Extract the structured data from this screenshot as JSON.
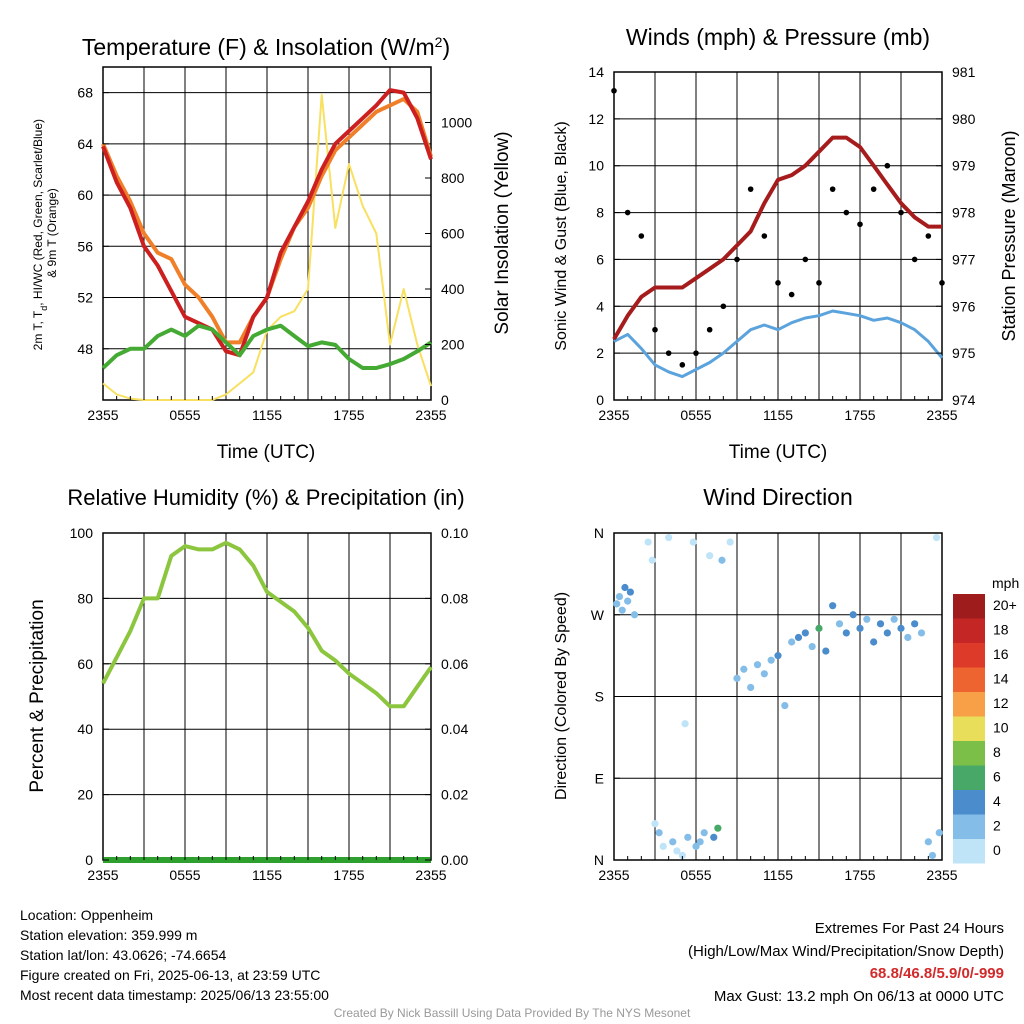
{
  "footer": {
    "location": "Location: Oppenheim",
    "elevation": "Station elevation: 359.999 m",
    "latlon": "Station lat/lon: 43.0626; -74.6654",
    "created": "Figure created on Fri, 2025-06-13, at 23:59 UTC",
    "recent": "Most recent data timestamp: 2025/06/13 23:55:00",
    "extremes_title": "Extremes For Past 24 Hours",
    "extremes_sub": "(High/Low/Max Wind/Precipitation/Snow Depth)",
    "extremes_values": "68.8/46.8/5.9/0/-999",
    "max_gust": "Max Gust: 13.2 mph On 06/13 at 0000 UTC",
    "credit": "Created By Nick Bassill Using Data Provided By The NYS Mesonet"
  },
  "colors": {
    "temperature": "#cc2020",
    "dewpoint": "#44aa33",
    "windchill": "#3c7fc3",
    "t9m": "#f07f2a",
    "insolation": "#f8e060",
    "wind": "#5ba3dd",
    "gust": "#000000",
    "pressure": "#a61c1c",
    "rh": "#8cc63f",
    "precip": "#2ea02e"
  },
  "chart_data": [
    {
      "id": "temp",
      "type": "line",
      "title": "Temperature (F) & Insolation (W/m²)",
      "xlabel": "Time (UTC)",
      "ylabel_left": "2m T, Td, HI/WC (Red, Green, Scarlet/Blue) & 9m T (Orange)",
      "ylabel_right": "Solar Insolation (Yellow)",
      "x_ticks": [
        "2355",
        "0555",
        "1155",
        "1755",
        "2355"
      ],
      "ylim": [
        44,
        70
      ],
      "y_ticks": [
        48,
        52,
        56,
        60,
        64,
        68
      ],
      "y2lim": [
        0,
        1200
      ],
      "y2_ticks": [
        0,
        200,
        400,
        600,
        800,
        1000
      ],
      "x_hours": [
        0,
        1,
        2,
        3,
        4,
        5,
        6,
        7,
        8,
        9,
        10,
        11,
        12,
        13,
        14,
        15,
        16,
        17,
        18,
        19,
        20,
        21,
        22,
        23,
        24
      ],
      "series": [
        {
          "name": "9m T",
          "axis": "left",
          "values": [
            64,
            61.5,
            59.5,
            57,
            55.5,
            55,
            53,
            52,
            50.5,
            48.5,
            48.5,
            50.5,
            52,
            55,
            57.5,
            59,
            61.5,
            63.5,
            64.5,
            65.5,
            66.5,
            67,
            67.5,
            66.5,
            63
          ]
        },
        {
          "name": "2m T",
          "axis": "left",
          "values": [
            63.8,
            61,
            59,
            56,
            54.5,
            52.5,
            50.5,
            50,
            49.5,
            47.8,
            47.5,
            50.5,
            52,
            55.5,
            57.5,
            59.5,
            62,
            64,
            65,
            66,
            67,
            68.2,
            68,
            66,
            62.8
          ]
        },
        {
          "name": "Td",
          "axis": "left",
          "values": [
            46.5,
            47.5,
            48,
            48,
            49,
            49.5,
            49,
            49.8,
            49.5,
            48.5,
            47.5,
            49,
            49.5,
            49.8,
            49,
            48.2,
            48.5,
            48.3,
            47.2,
            46.5,
            46.5,
            46.8,
            47.2,
            47.8,
            48.5
          ]
        },
        {
          "name": "Insolation",
          "axis": "right",
          "values": [
            60,
            20,
            5,
            0,
            0,
            0,
            0,
            0,
            0,
            20,
            60,
            100,
            250,
            300,
            320,
            400,
            1100,
            620,
            850,
            700,
            600,
            200,
            400,
            200,
            50
          ]
        }
      ]
    },
    {
      "id": "wind",
      "type": "line",
      "title": "Winds (mph) & Pressure (mb)",
      "xlabel": "Time (UTC)",
      "ylabel_left": "Sonic Wind & Gust (Blue, Black)",
      "ylabel_right": "Station Pressure (Maroon)",
      "x_ticks": [
        "2355",
        "0555",
        "1155",
        "1755",
        "2355"
      ],
      "ylim": [
        0,
        14
      ],
      "y_ticks": [
        0,
        2,
        4,
        6,
        8,
        10,
        12,
        14
      ],
      "y2lim": [
        974,
        981
      ],
      "y2_ticks": [
        974,
        975,
        976,
        977,
        978,
        979,
        980,
        981
      ],
      "x_hours": [
        0,
        1,
        2,
        3,
        4,
        5,
        6,
        7,
        8,
        9,
        10,
        11,
        12,
        13,
        14,
        15,
        16,
        17,
        18,
        19,
        20,
        21,
        22,
        23,
        24
      ],
      "series": [
        {
          "name": "Wind",
          "axis": "left",
          "values": [
            2.5,
            2.8,
            2.2,
            1.5,
            1.2,
            1.0,
            1.3,
            1.6,
            2.0,
            2.5,
            3.0,
            3.2,
            3.0,
            3.3,
            3.5,
            3.6,
            3.8,
            3.7,
            3.6,
            3.4,
            3.5,
            3.3,
            3.0,
            2.5,
            1.8
          ]
        },
        {
          "name": "Gust",
          "axis": "left",
          "values": [
            13.2,
            8,
            7,
            3,
            2,
            1.5,
            2,
            3,
            4,
            6,
            9,
            7,
            5,
            4.5,
            6,
            5,
            9,
            8,
            7.5,
            9,
            10,
            8,
            6,
            7,
            5
          ]
        },
        {
          "name": "Pressure",
          "axis": "right",
          "values": [
            975.3,
            975.8,
            976.2,
            976.4,
            976.4,
            976.4,
            976.6,
            976.8,
            977.0,
            977.3,
            977.6,
            978.2,
            978.7,
            978.8,
            979.0,
            979.3,
            979.6,
            979.6,
            979.4,
            979.0,
            978.6,
            978.2,
            977.9,
            977.7,
            977.7
          ]
        }
      ]
    },
    {
      "id": "rh",
      "type": "line",
      "title": "Relative Humidity (%) & Precipitation (in)",
      "xlabel": "",
      "ylabel_left": "Percent & Precipitation",
      "ylabel_right": "",
      "x_ticks": [
        "2355",
        "0555",
        "1155",
        "1755",
        "2355"
      ],
      "ylim": [
        0,
        100
      ],
      "y_ticks": [
        0,
        20,
        40,
        60,
        80,
        100
      ],
      "y2lim": [
        0,
        0.1
      ],
      "y2_ticks": [
        "0.00",
        "0.02",
        "0.04",
        "0.06",
        "0.08",
        "0.10"
      ],
      "x_hours": [
        0,
        1,
        2,
        3,
        4,
        5,
        6,
        7,
        8,
        9,
        10,
        11,
        12,
        13,
        14,
        15,
        16,
        17,
        18,
        19,
        20,
        21,
        22,
        23,
        24
      ],
      "series": [
        {
          "name": "RH",
          "axis": "left",
          "values": [
            54,
            62,
            70,
            80,
            80,
            93,
            96,
            95,
            95,
            97,
            95,
            90,
            82,
            79,
            76,
            71,
            64,
            61,
            57,
            54,
            51,
            47,
            47,
            53,
            59
          ]
        },
        {
          "name": "Precipitation",
          "axis": "right",
          "values": [
            0,
            0,
            0,
            0,
            0,
            0,
            0,
            0,
            0,
            0,
            0,
            0,
            0,
            0,
            0,
            0,
            0,
            0,
            0,
            0,
            0,
            0,
            0,
            0,
            0
          ]
        }
      ]
    },
    {
      "id": "dir",
      "type": "scatter",
      "title": "Wind Direction",
      "xlabel": "",
      "ylabel": "Direction (Colored By Speed)",
      "x_ticks": [
        "2355",
        "0555",
        "1155",
        "1755",
        "2355"
      ],
      "ylim": [
        0,
        360
      ],
      "y_ticks": [
        "N",
        "E",
        "S",
        "W",
        "N"
      ],
      "colorbar": {
        "unit": "mph",
        "labels": [
          "20+",
          "18",
          "16",
          "14",
          "12",
          "10",
          "8",
          "6",
          "4",
          "2",
          "0"
        ],
        "colors": [
          "#9e1c1c",
          "#c42626",
          "#de3a2a",
          "#ee6430",
          "#f8a048",
          "#e8de5a",
          "#7cbf48",
          "#48a868",
          "#4a8ccc",
          "#84bde8",
          "#bfe3f7"
        ]
      },
      "points": [
        {
          "x": 0.2,
          "y": 282,
          "speed": 2
        },
        {
          "x": 0.4,
          "y": 290,
          "speed": 3
        },
        {
          "x": 0.6,
          "y": 275,
          "speed": 3
        },
        {
          "x": 0.8,
          "y": 300,
          "speed": 4
        },
        {
          "x": 1.0,
          "y": 285,
          "speed": 3
        },
        {
          "x": 1.2,
          "y": 295,
          "speed": 4
        },
        {
          "x": 1.5,
          "y": 270,
          "speed": 2
        },
        {
          "x": 2.5,
          "y": 350,
          "speed": 1
        },
        {
          "x": 2.8,
          "y": 330,
          "speed": 1
        },
        {
          "x": 3.0,
          "y": 40,
          "speed": 1
        },
        {
          "x": 3.3,
          "y": 30,
          "speed": 2
        },
        {
          "x": 3.6,
          "y": 15,
          "speed": 1
        },
        {
          "x": 4.0,
          "y": 355,
          "speed": 1
        },
        {
          "x": 4.3,
          "y": 20,
          "speed": 2
        },
        {
          "x": 4.6,
          "y": 10,
          "speed": 1
        },
        {
          "x": 5.0,
          "y": 5,
          "speed": 1
        },
        {
          "x": 5.2,
          "y": 150,
          "speed": 1
        },
        {
          "x": 5.4,
          "y": 25,
          "speed": 2
        },
        {
          "x": 5.8,
          "y": 350,
          "speed": 1
        },
        {
          "x": 6.0,
          "y": 15,
          "speed": 2
        },
        {
          "x": 6.3,
          "y": 20,
          "speed": 3
        },
        {
          "x": 6.6,
          "y": 30,
          "speed": 3
        },
        {
          "x": 7.0,
          "y": 335,
          "speed": 1
        },
        {
          "x": 7.3,
          "y": 25,
          "speed": 5
        },
        {
          "x": 7.6,
          "y": 35,
          "speed": 6
        },
        {
          "x": 7.9,
          "y": 330,
          "speed": 2
        },
        {
          "x": 8.5,
          "y": 350,
          "speed": 1
        },
        {
          "x": 9.0,
          "y": 200,
          "speed": 2
        },
        {
          "x": 9.5,
          "y": 210,
          "speed": 3
        },
        {
          "x": 10.0,
          "y": 190,
          "speed": 2
        },
        {
          "x": 10.5,
          "y": 215,
          "speed": 3
        },
        {
          "x": 11.0,
          "y": 205,
          "speed": 2
        },
        {
          "x": 11.5,
          "y": 220,
          "speed": 3
        },
        {
          "x": 12.0,
          "y": 225,
          "speed": 4
        },
        {
          "x": 12.5,
          "y": 170,
          "speed": 3
        },
        {
          "x": 13.0,
          "y": 240,
          "speed": 3
        },
        {
          "x": 13.5,
          "y": 245,
          "speed": 4
        },
        {
          "x": 14.0,
          "y": 250,
          "speed": 4
        },
        {
          "x": 14.5,
          "y": 235,
          "speed": 3
        },
        {
          "x": 15.0,
          "y": 255,
          "speed": 6
        },
        {
          "x": 15.5,
          "y": 230,
          "speed": 4
        },
        {
          "x": 16.0,
          "y": 280,
          "speed": 4
        },
        {
          "x": 16.5,
          "y": 260,
          "speed": 3
        },
        {
          "x": 17.0,
          "y": 250,
          "speed": 4
        },
        {
          "x": 17.5,
          "y": 270,
          "speed": 4
        },
        {
          "x": 18.0,
          "y": 255,
          "speed": 4
        },
        {
          "x": 18.5,
          "y": 265,
          "speed": 3
        },
        {
          "x": 19.0,
          "y": 240,
          "speed": 4
        },
        {
          "x": 19.5,
          "y": 260,
          "speed": 4
        },
        {
          "x": 20.0,
          "y": 250,
          "speed": 4
        },
        {
          "x": 20.5,
          "y": 265,
          "speed": 3
        },
        {
          "x": 21.0,
          "y": 255,
          "speed": 4
        },
        {
          "x": 21.5,
          "y": 245,
          "speed": 3
        },
        {
          "x": 22.0,
          "y": 260,
          "speed": 4
        },
        {
          "x": 22.5,
          "y": 250,
          "speed": 3
        },
        {
          "x": 23.0,
          "y": 20,
          "speed": 3
        },
        {
          "x": 23.3,
          "y": 5,
          "speed": 2
        },
        {
          "x": 23.6,
          "y": 355,
          "speed": 1
        },
        {
          "x": 23.8,
          "y": 30,
          "speed": 3
        }
      ]
    }
  ]
}
